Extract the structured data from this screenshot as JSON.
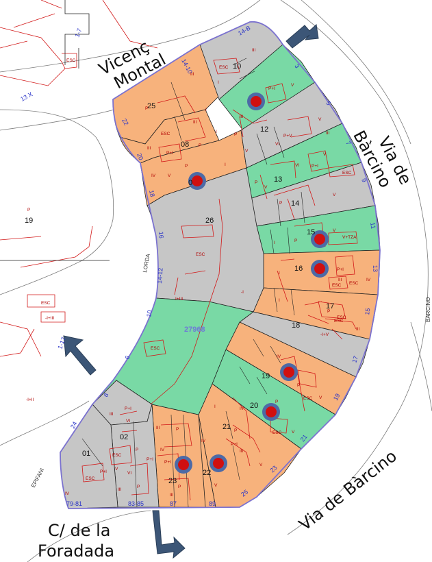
{
  "colors": {
    "orange": "#f7b27c",
    "green": "#79d9a5",
    "grey": "#c6c6c6",
    "parcel_line": "#d21818",
    "block_outline": "#7b72cf",
    "marker_ring": "#4d6aa6",
    "marker_core": "#d01010",
    "arrow": "#3c5677",
    "house_number": "#2a34c8"
  },
  "streets": {
    "vicenc_montal_1": "Vicenç",
    "vicenc_montal_2": "Montal",
    "via_barcino_a_1": "Via de",
    "via_barcino_a_2": "Bàrcino",
    "via_barcino_b": "Via de Bàrcino",
    "foradada_1": "C/ de la",
    "foradada_2": "Foradada",
    "lorda": "LORDA",
    "epifani": "EPIFANI",
    "barcino_small": "BARCINO"
  },
  "block_id": "27968",
  "parcels": [
    {
      "num": "10",
      "color": "grey"
    },
    {
      "num": "25",
      "color": "orange"
    },
    {
      "num": "08",
      "color": "orange"
    },
    {
      "num": "0",
      "color": "orange"
    },
    {
      "num": "12",
      "color": "grey"
    },
    {
      "num": "13",
      "color": "green"
    },
    {
      "num": "14",
      "color": "grey"
    },
    {
      "num": "15",
      "color": "green"
    },
    {
      "num": "16",
      "color": "orange"
    },
    {
      "num": "17",
      "color": "orange"
    },
    {
      "num": "18",
      "color": "grey"
    },
    {
      "num": "19",
      "color": "orange"
    },
    {
      "num": "20",
      "color": "green"
    },
    {
      "num": "21",
      "color": "orange"
    },
    {
      "num": "22",
      "color": "orange"
    },
    {
      "num": "23",
      "color": "orange"
    },
    {
      "num": "26",
      "color": "grey"
    },
    {
      "num": "02",
      "color": "grey"
    },
    {
      "num": "01",
      "color": "grey"
    }
  ],
  "outside_parcel": {
    "num": "19",
    "floor": "P"
  },
  "house_numbers": {
    "h14b": "14-B",
    "h3": "3",
    "h5": "5",
    "h7": "7",
    "h9": "9",
    "h11": "11",
    "h13": "13",
    "h15": "15",
    "h17": "17",
    "h19": "19",
    "h21": "21",
    "h23": "23",
    "h25": "25",
    "h89": "89",
    "h87": "87",
    "h8385": "83-85",
    "h7981": "79-81",
    "h24": "24",
    "h8": "8",
    "h6": "6",
    "h10": "10",
    "h1412": "14-12",
    "h16": "16",
    "h18": "18",
    "h20": "20",
    "h22": "22",
    "h1410": "14-10",
    "h17l": "1-17",
    "h13x": "13 X",
    "h17t": "1-7"
  },
  "floor_labels": {
    "esc": "ESC",
    "p": "P",
    "pi": "P+I",
    "i": "I",
    "ii": "II",
    "iii": "III",
    "iv": "IV",
    "v": "V",
    "vi": "VI",
    "vtza": "V+TZA",
    "ihiii": "I+III",
    "ihv": "-I+V",
    "mi": "-I",
    "ihii": "-I+II",
    "ihiiib": "-I+III",
    "pv": "P+V"
  }
}
